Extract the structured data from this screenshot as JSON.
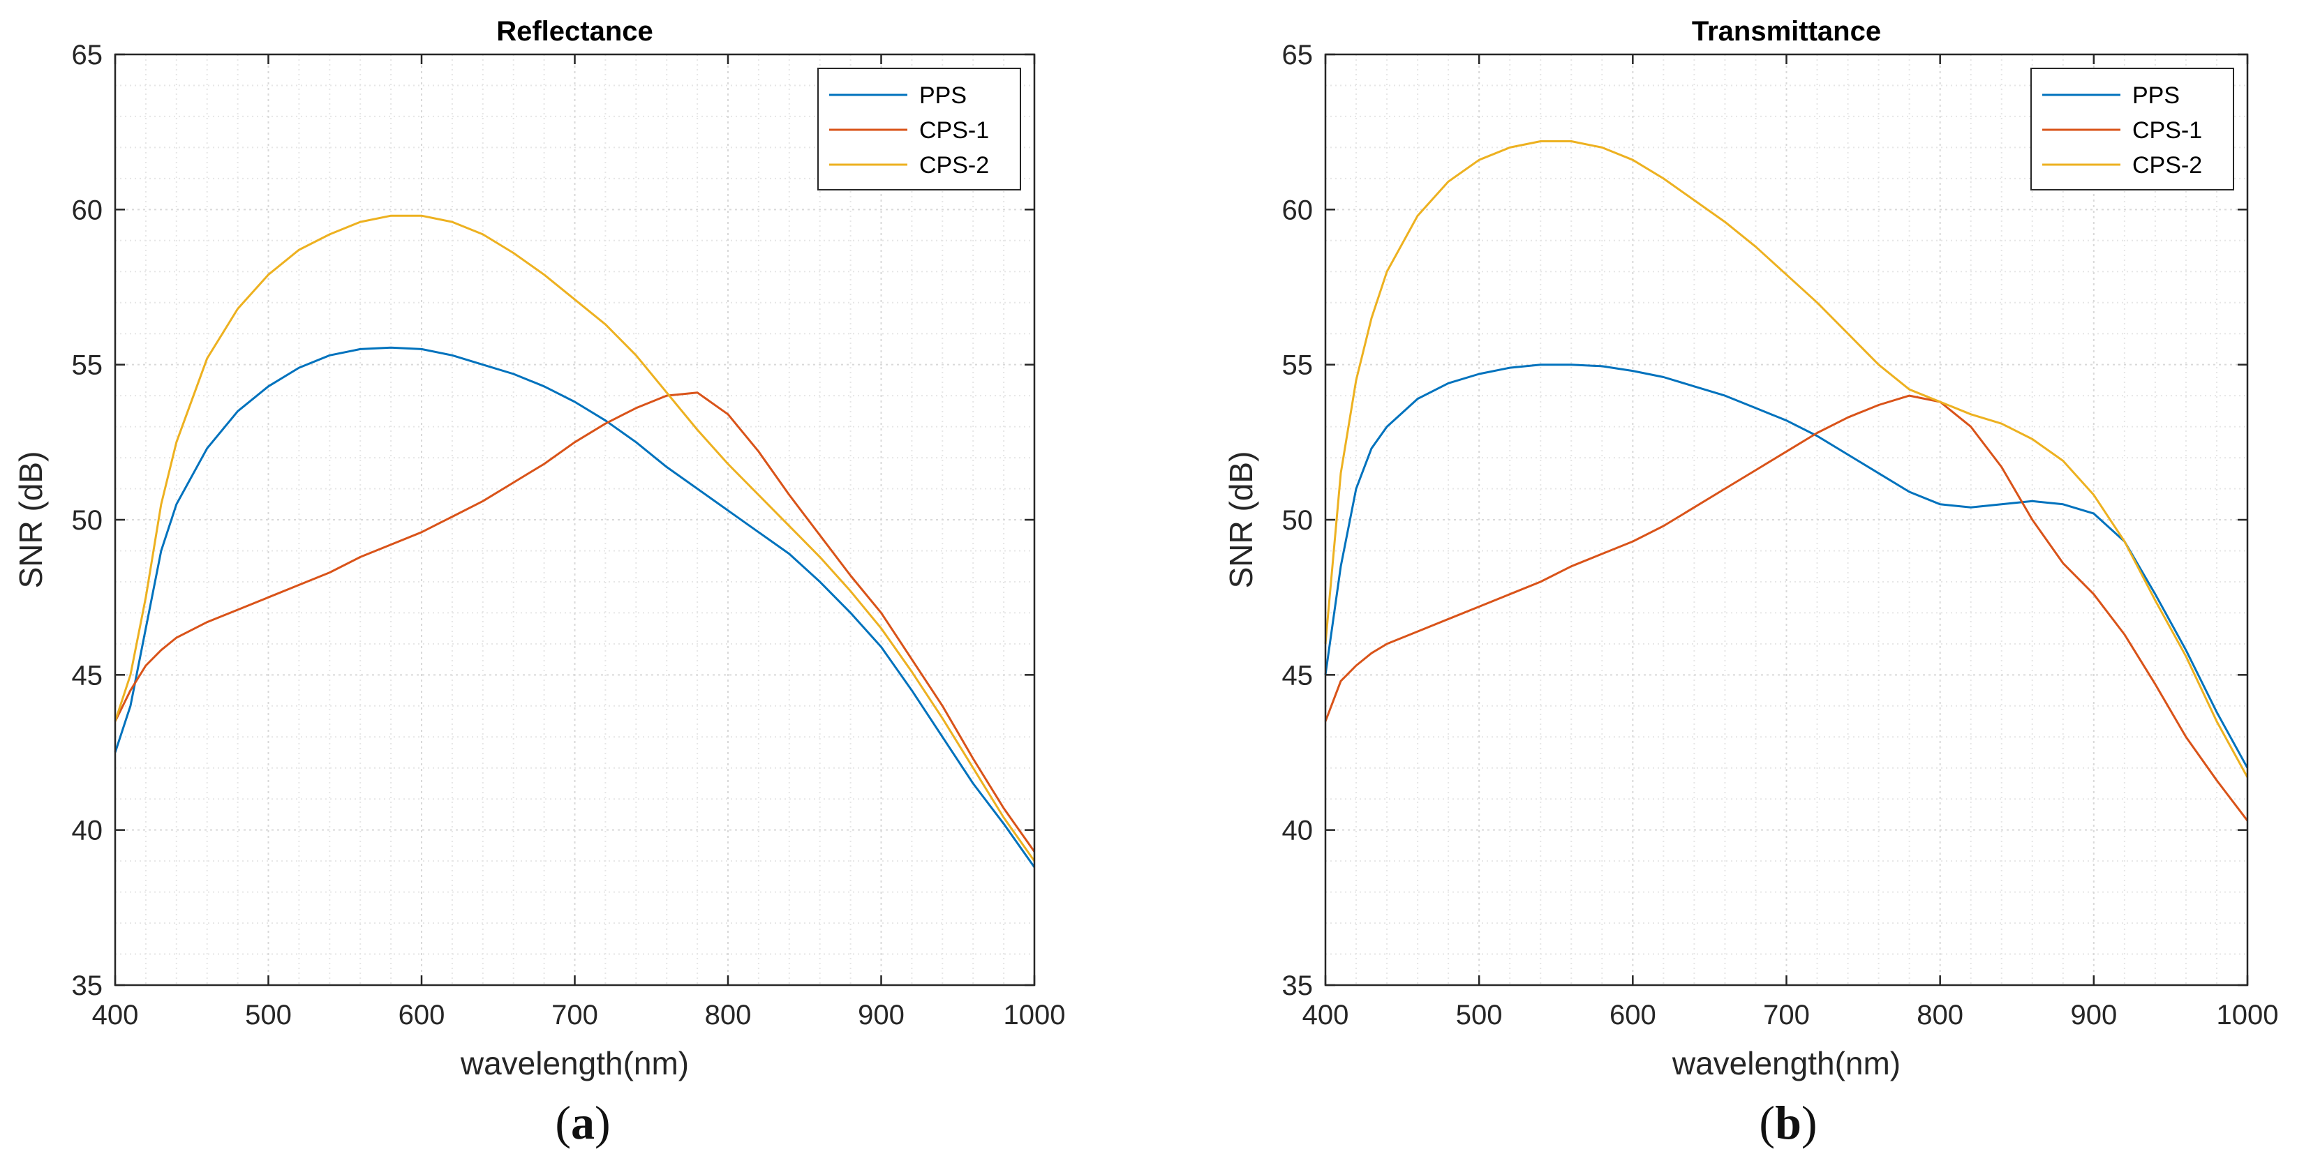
{
  "figure": {
    "panels": [
      {
        "caption_open": "(",
        "caption_letter": "a",
        "caption_close": ")"
      },
      {
        "caption_open": "(",
        "caption_letter": "b",
        "caption_close": ")"
      }
    ]
  },
  "colors": {
    "PPS": "#0072BD",
    "CPS-1": "#D95319",
    "CPS-2": "#EDB120",
    "grid": "#d9d9d9",
    "axis": "#262626"
  },
  "chart_data": [
    {
      "type": "line",
      "title": "Reflectance",
      "xlabel": "wavelength(nm)",
      "ylabel": "SNR (dB)",
      "xlim": [
        400,
        1000
      ],
      "ylim": [
        35,
        65
      ],
      "xticks": [
        400,
        500,
        600,
        700,
        800,
        900,
        1000
      ],
      "yticks": [
        35,
        40,
        45,
        50,
        55,
        60,
        65
      ],
      "grid": true,
      "legend_position": "top-right",
      "series": [
        {
          "name": "PPS",
          "x": [
            400,
            410,
            420,
            430,
            440,
            460,
            480,
            500,
            520,
            540,
            560,
            580,
            600,
            620,
            640,
            660,
            680,
            700,
            720,
            740,
            760,
            780,
            800,
            820,
            840,
            860,
            880,
            900,
            920,
            940,
            960,
            980,
            1000
          ],
          "y": [
            42.5,
            44.0,
            46.5,
            49.0,
            50.5,
            52.3,
            53.5,
            54.3,
            54.9,
            55.3,
            55.5,
            55.55,
            55.5,
            55.3,
            55.0,
            54.7,
            54.3,
            53.8,
            53.2,
            52.5,
            51.7,
            51.0,
            50.3,
            49.6,
            48.9,
            48.0,
            47.0,
            45.9,
            44.5,
            43.0,
            41.5,
            40.2,
            38.8
          ]
        },
        {
          "name": "CPS-1",
          "x": [
            400,
            410,
            420,
            430,
            440,
            460,
            480,
            500,
            520,
            540,
            560,
            580,
            600,
            620,
            640,
            660,
            680,
            700,
            720,
            740,
            760,
            780,
            800,
            820,
            840,
            860,
            880,
            900,
            920,
            940,
            960,
            980,
            1000
          ],
          "y": [
            43.5,
            44.5,
            45.3,
            45.8,
            46.2,
            46.7,
            47.1,
            47.5,
            47.9,
            48.3,
            48.8,
            49.2,
            49.6,
            50.1,
            50.6,
            51.2,
            51.8,
            52.5,
            53.1,
            53.6,
            54.0,
            54.1,
            53.4,
            52.2,
            50.8,
            49.5,
            48.2,
            47.0,
            45.5,
            44.0,
            42.3,
            40.7,
            39.3
          ]
        },
        {
          "name": "CPS-2",
          "x": [
            400,
            410,
            420,
            430,
            440,
            460,
            480,
            500,
            520,
            540,
            560,
            580,
            600,
            620,
            640,
            660,
            680,
            700,
            720,
            740,
            760,
            780,
            800,
            820,
            840,
            860,
            880,
            900,
            920,
            940,
            960,
            980,
            1000
          ],
          "y": [
            43.5,
            45.0,
            47.5,
            50.5,
            52.5,
            55.2,
            56.8,
            57.9,
            58.7,
            59.2,
            59.6,
            59.8,
            59.8,
            59.6,
            59.2,
            58.6,
            57.9,
            57.1,
            56.3,
            55.3,
            54.1,
            52.9,
            51.8,
            50.8,
            49.8,
            48.8,
            47.7,
            46.5,
            45.1,
            43.6,
            42.0,
            40.4,
            39.0
          ]
        }
      ]
    },
    {
      "type": "line",
      "title": "Transmittance",
      "xlabel": "wavelength(nm)",
      "ylabel": "SNR (dB)",
      "xlim": [
        400,
        1000
      ],
      "ylim": [
        35,
        65
      ],
      "xticks": [
        400,
        500,
        600,
        700,
        800,
        900,
        1000
      ],
      "yticks": [
        35,
        40,
        45,
        50,
        55,
        60,
        65
      ],
      "grid": true,
      "legend_position": "top-right",
      "series": [
        {
          "name": "PPS",
          "x": [
            400,
            410,
            420,
            430,
            440,
            460,
            480,
            500,
            520,
            540,
            560,
            580,
            600,
            620,
            640,
            660,
            680,
            700,
            720,
            740,
            760,
            780,
            800,
            820,
            840,
            860,
            880,
            900,
            920,
            940,
            960,
            980,
            1000
          ],
          "y": [
            45.0,
            48.5,
            51.0,
            52.3,
            53.0,
            53.9,
            54.4,
            54.7,
            54.9,
            55.0,
            55.0,
            54.95,
            54.8,
            54.6,
            54.3,
            54.0,
            53.6,
            53.2,
            52.7,
            52.1,
            51.5,
            50.9,
            50.5,
            50.4,
            50.5,
            50.6,
            50.5,
            50.2,
            49.3,
            47.6,
            45.8,
            43.8,
            42.0
          ]
        },
        {
          "name": "CPS-1",
          "x": [
            400,
            410,
            420,
            430,
            440,
            460,
            480,
            500,
            520,
            540,
            560,
            580,
            600,
            620,
            640,
            660,
            680,
            700,
            720,
            740,
            760,
            780,
            800,
            820,
            840,
            860,
            880,
            900,
            920,
            940,
            960,
            980,
            1000
          ],
          "y": [
            43.5,
            44.8,
            45.3,
            45.7,
            46.0,
            46.4,
            46.8,
            47.2,
            47.6,
            48.0,
            48.5,
            48.9,
            49.3,
            49.8,
            50.4,
            51.0,
            51.6,
            52.2,
            52.8,
            53.3,
            53.7,
            54.0,
            53.8,
            53.0,
            51.7,
            50.0,
            48.6,
            47.6,
            46.3,
            44.7,
            43.0,
            41.6,
            40.3
          ]
        },
        {
          "name": "CPS-2",
          "x": [
            400,
            410,
            420,
            430,
            440,
            460,
            480,
            500,
            520,
            540,
            560,
            580,
            600,
            620,
            640,
            660,
            680,
            700,
            720,
            740,
            760,
            780,
            800,
            820,
            840,
            860,
            880,
            900,
            920,
            940,
            960,
            980,
            1000
          ],
          "y": [
            46.0,
            51.5,
            54.5,
            56.5,
            58.0,
            59.8,
            60.9,
            61.6,
            62.0,
            62.2,
            62.2,
            62.0,
            61.6,
            61.0,
            60.3,
            59.6,
            58.8,
            57.9,
            57.0,
            56.0,
            55.0,
            54.2,
            53.8,
            53.4,
            53.1,
            52.6,
            51.9,
            50.8,
            49.3,
            47.4,
            45.6,
            43.5,
            41.7
          ]
        }
      ]
    }
  ]
}
